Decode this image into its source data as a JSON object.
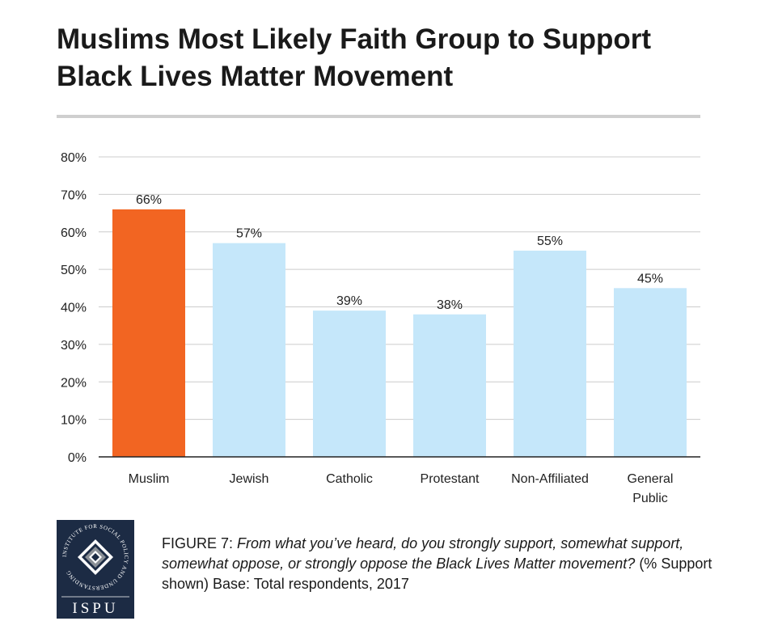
{
  "title_lines": [
    "Muslims Most Likely Faith Group to Support",
    "Black Lives Matter Movement"
  ],
  "chart_data": {
    "type": "bar",
    "categories": [
      "Muslim",
      "Jewish",
      "Catholic",
      "Protestant",
      "Non-Affiliated",
      "General Public"
    ],
    "category_lines": [
      [
        "Muslim"
      ],
      [
        "Jewish"
      ],
      [
        "Catholic"
      ],
      [
        "Protestant"
      ],
      [
        "Non-Affiliated"
      ],
      [
        "General",
        "Public"
      ]
    ],
    "values": [
      66,
      57,
      39,
      38,
      55,
      45
    ],
    "data_labels": [
      "66%",
      "57%",
      "39%",
      "38%",
      "55%",
      "45%"
    ],
    "ylim": [
      0,
      80
    ],
    "yticks": [
      0,
      10,
      20,
      30,
      40,
      50,
      60,
      70,
      80
    ],
    "ytick_labels": [
      "0%",
      "10%",
      "20%",
      "30%",
      "40%",
      "50%",
      "60%",
      "70%",
      "80%"
    ],
    "grid": true,
    "colors": [
      "#f26522",
      "#c5e7fa",
      "#c5e7fa",
      "#c5e7fa",
      "#c5e7fa",
      "#c5e7fa"
    ]
  },
  "logo": {
    "ring_text": "INSTITUTE FOR SOCIAL POLICY AND UNDERSTANDING",
    "letters": "ISPU",
    "colors": {
      "navy": "#1c2b44",
      "grey": "#8a8f96",
      "white": "#ffffff"
    }
  },
  "caption": {
    "figure_label": "FIGURE 7",
    "sep": ": ",
    "question": "From what you’ve heard, do you strongly support, somewhat support, somewhat oppose, or strongly oppose the Black Lives Matter movement?",
    "note": " (% Support shown) Base: Total respondents, 2017"
  }
}
